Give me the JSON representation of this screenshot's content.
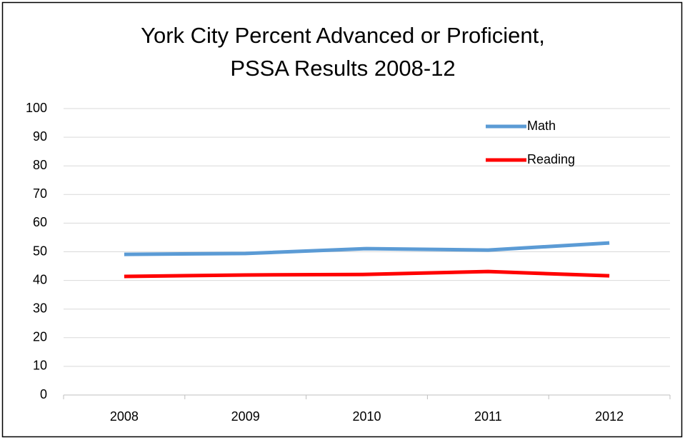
{
  "chart_data": {
    "type": "line",
    "title": [
      "York City Percent Advanced or Proficient,",
      "PSSA Results 2008-12"
    ],
    "categories": [
      "2008",
      "2009",
      "2010",
      "2011",
      "2012"
    ],
    "series": [
      {
        "name": "Math",
        "color": "#5b9bd5",
        "values": [
          49.1,
          49.4,
          51.1,
          50.6,
          53.1
        ]
      },
      {
        "name": "Reading",
        "color": "#ff0000",
        "values": [
          41.4,
          41.9,
          42.1,
          43.1,
          41.6
        ]
      }
    ],
    "ylim": [
      0,
      100
    ],
    "yticks": [
      0,
      10,
      20,
      30,
      40,
      50,
      60,
      70,
      80,
      90,
      100
    ],
    "grid": true,
    "legend": "top-right"
  }
}
